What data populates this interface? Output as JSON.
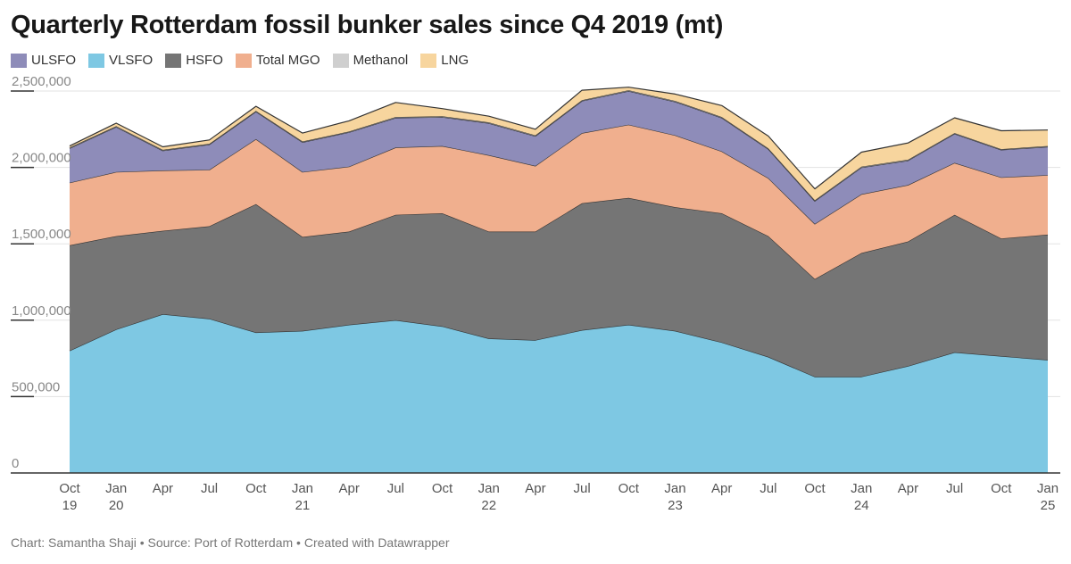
{
  "title": "Quarterly Rotterdam fossil bunker sales since Q4 2019 (mt)",
  "footer": "Chart: Samantha Shaji • Source: Port of Rotterdam • Created with Datawrapper",
  "chart_data": {
    "type": "area",
    "stacked": true,
    "title": "Quarterly Rotterdam fossil bunker sales since Q4 2019 (mt)",
    "xlabel": "",
    "ylabel": "",
    "ylim": [
      0,
      2500000
    ],
    "grid": true,
    "legend_position": "top",
    "y_ticks": [
      {
        "value": 0,
        "label": "0"
      },
      {
        "value": 500000,
        "label": "500,000"
      },
      {
        "value": 1000000,
        "label": "1,000,000"
      },
      {
        "value": 1500000,
        "label": "1,500,000"
      },
      {
        "value": 2000000,
        "label": "2,000,000"
      },
      {
        "value": 2500000,
        "label": "2,500,000"
      }
    ],
    "x_labels": [
      {
        "line1": "Oct",
        "line2": "19"
      },
      {
        "line1": "Jan",
        "line2": "20"
      },
      {
        "line1": "Apr",
        "line2": ""
      },
      {
        "line1": "Jul",
        "line2": ""
      },
      {
        "line1": "Oct",
        "line2": ""
      },
      {
        "line1": "Jan",
        "line2": "21"
      },
      {
        "line1": "Apr",
        "line2": ""
      },
      {
        "line1": "Jul",
        "line2": ""
      },
      {
        "line1": "Oct",
        "line2": ""
      },
      {
        "line1": "Jan",
        "line2": "22"
      },
      {
        "line1": "Apr",
        "line2": ""
      },
      {
        "line1": "Jul",
        "line2": ""
      },
      {
        "line1": "Oct",
        "line2": ""
      },
      {
        "line1": "Jan",
        "line2": "23"
      },
      {
        "line1": "Apr",
        "line2": ""
      },
      {
        "line1": "Jul",
        "line2": ""
      },
      {
        "line1": "Oct",
        "line2": ""
      },
      {
        "line1": "Jan",
        "line2": "24"
      },
      {
        "line1": "Apr",
        "line2": ""
      },
      {
        "line1": "Jul",
        "line2": ""
      },
      {
        "line1": "Oct",
        "line2": ""
      },
      {
        "line1": "Jan",
        "line2": "25"
      }
    ],
    "series": [
      {
        "name": "VLSFO",
        "color": "#7ec8e3",
        "values": [
          800000,
          940000,
          1040000,
          1010000,
          920000,
          930000,
          970000,
          1000000,
          960000,
          880000,
          870000,
          935000,
          970000,
          930000,
          855000,
          760000,
          630000,
          630000,
          700000,
          790000,
          765000,
          740000
        ]
      },
      {
        "name": "HSFO",
        "color": "#757575",
        "values": [
          690000,
          610000,
          545000,
          605000,
          840000,
          615000,
          610000,
          690000,
          740000,
          700000,
          710000,
          830000,
          830000,
          810000,
          845000,
          790000,
          640000,
          810000,
          815000,
          900000,
          770000,
          820000
        ]
      },
      {
        "name": "Total MGO",
        "color": "#f0af8e",
        "values": [
          410000,
          420000,
          395000,
          370000,
          425000,
          425000,
          425000,
          440000,
          440000,
          500000,
          430000,
          460000,
          480000,
          470000,
          405000,
          380000,
          360000,
          385000,
          370000,
          340000,
          400000,
          390000
        ]
      },
      {
        "name": "ULSFO",
        "color": "#8e8cb9",
        "values": [
          225000,
          295000,
          130000,
          165000,
          180000,
          195000,
          225000,
          195000,
          190000,
          210000,
          195000,
          210000,
          220000,
          220000,
          220000,
          190000,
          150000,
          175000,
          160000,
          190000,
          180000,
          185000
        ]
      },
      {
        "name": "Methanol",
        "color": "#cfcfcf",
        "values": [
          5000,
          5000,
          5000,
          5000,
          5000,
          5000,
          5000,
          5000,
          5000,
          5000,
          5000,
          5000,
          5000,
          5000,
          5000,
          5000,
          5000,
          5000,
          5000,
          5000,
          5000,
          5000
        ]
      },
      {
        "name": "LNG",
        "color": "#f7d59e",
        "values": [
          10000,
          20000,
          20000,
          25000,
          30000,
          55000,
          70000,
          95000,
          50000,
          40000,
          40000,
          65000,
          20000,
          45000,
          75000,
          80000,
          75000,
          95000,
          110000,
          100000,
          120000,
          105000
        ]
      }
    ]
  }
}
